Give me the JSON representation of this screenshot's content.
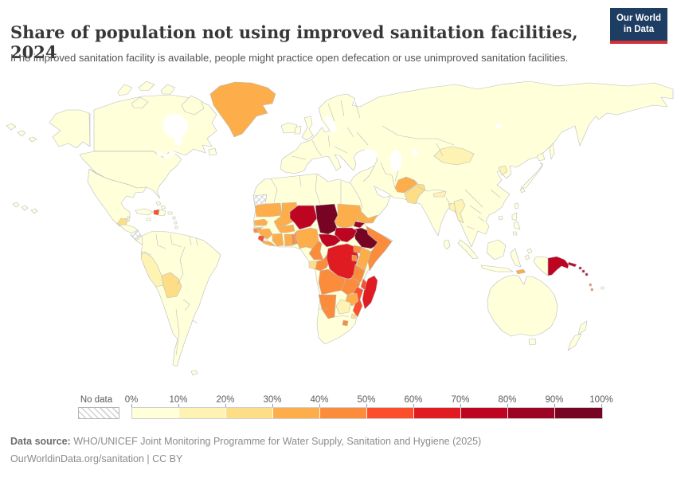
{
  "header": {
    "title": "Share of population not using improved sanitation facilities, 2024",
    "subtitle": "If no improved sanitation facility is available, people might practice open defecation or use unimproved sanitation facilities.",
    "logo": {
      "line1": "Our World",
      "line2": "in Data"
    }
  },
  "legend": {
    "no_data_label": "No data",
    "ticks": [
      "0%",
      "10%",
      "20%",
      "30%",
      "40%",
      "50%",
      "60%",
      "70%",
      "80%",
      "90%",
      "100%"
    ],
    "bins": [
      {
        "range": "0-10%",
        "color": "#FFFFD9"
      },
      {
        "range": "10-20%",
        "color": "#FEF3B3"
      },
      {
        "range": "20-30%",
        "color": "#FEDD87"
      },
      {
        "range": "30-40%",
        "color": "#FDAE4B"
      },
      {
        "range": "40-50%",
        "color": "#FB8C3C"
      },
      {
        "range": "50-60%",
        "color": "#FC4E2A"
      },
      {
        "range": "60-70%",
        "color": "#E11B22"
      },
      {
        "range": "70-80%",
        "color": "#BD0522"
      },
      {
        "range": "80-90%",
        "color": "#9D0423"
      },
      {
        "range": "90-100%",
        "color": "#780423"
      }
    ]
  },
  "footer": {
    "datasource_label": "Data source:",
    "datasource_text": " WHO/UNICEF Joint Monitoring Programme for Water Supply, Sanitation and Hygiene (2025)",
    "license_line": "OurWorldinData.org/sanitation | CC BY"
  },
  "chart_data": {
    "type": "choropleth_map",
    "title": "Share of population not using improved sanitation facilities, 2024",
    "unit": "%",
    "year": "2024",
    "legend_position": "bottom",
    "color_scale_bins": [
      {
        "range": "0-10%",
        "color": "#FFFFD9"
      },
      {
        "range": "10-20%",
        "color": "#FEF3B3"
      },
      {
        "range": "20-30%",
        "color": "#FEDD87"
      },
      {
        "range": "30-40%",
        "color": "#FDAE4B"
      },
      {
        "range": "40-50%",
        "color": "#FB8C3C"
      },
      {
        "range": "50-60%",
        "color": "#FC4E2A"
      },
      {
        "range": "60-70%",
        "color": "#E11B22"
      },
      {
        "range": "70-80%",
        "color": "#BD0522"
      },
      {
        "range": "80-90%",
        "color": "#9D0423"
      },
      {
        "range": "90-100%",
        "color": "#780423"
      }
    ],
    "no_data_regions": [
      "Western Sahara",
      "Nicaragua"
    ],
    "regions": [
      {
        "name": "Canada",
        "bin": "0-10%"
      },
      {
        "name": "United States",
        "bin": "0-10%"
      },
      {
        "name": "Mexico",
        "bin": "0-10%"
      },
      {
        "name": "Greenland",
        "bin": "30-40%"
      },
      {
        "name": "Guatemala",
        "bin": "20-30%"
      },
      {
        "name": "Belize",
        "bin": "10-20%"
      },
      {
        "name": "Honduras",
        "bin": "0-10%"
      },
      {
        "name": "Cuba",
        "bin": "0-10%"
      },
      {
        "name": "Haiti",
        "bin": "50-60%"
      },
      {
        "name": "Dominican Republic",
        "bin": "0-10%"
      },
      {
        "name": "Colombia",
        "bin": "0-10%"
      },
      {
        "name": "Venezuela",
        "bin": "0-10%"
      },
      {
        "name": "Brazil",
        "bin": "0-10%"
      },
      {
        "name": "Peru",
        "bin": "10-20%"
      },
      {
        "name": "Bolivia",
        "bin": "20-30%"
      },
      {
        "name": "Argentina",
        "bin": "0-10%"
      },
      {
        "name": "Chile",
        "bin": "0-10%"
      },
      {
        "name": "Europe (all countries)",
        "bin": "0-10%"
      },
      {
        "name": "Russia",
        "bin": "0-10%"
      },
      {
        "name": "Kazakhstan",
        "bin": "0-10%"
      },
      {
        "name": "Mongolia",
        "bin": "10-20%"
      },
      {
        "name": "China",
        "bin": "0-10%"
      },
      {
        "name": "North Korea",
        "bin": "10-20%"
      },
      {
        "name": "Japan",
        "bin": "0-10%"
      },
      {
        "name": "Afghanistan",
        "bin": "30-40%"
      },
      {
        "name": "Pakistan",
        "bin": "20-30%"
      },
      {
        "name": "India",
        "bin": "0-10%"
      },
      {
        "name": "Nepal",
        "bin": "10-20%"
      },
      {
        "name": "Bangladesh",
        "bin": "10-20%"
      },
      {
        "name": "Myanmar",
        "bin": "10-20%"
      },
      {
        "name": "Thailand",
        "bin": "0-10%"
      },
      {
        "name": "Indonesia",
        "bin": "0-10%"
      },
      {
        "name": "Philippines",
        "bin": "0-10%"
      },
      {
        "name": "Saudi Arabia",
        "bin": "0-10%"
      },
      {
        "name": "Yemen",
        "bin": "30-40%"
      },
      {
        "name": "Iran",
        "bin": "0-10%"
      },
      {
        "name": "Turkey",
        "bin": "0-10%"
      },
      {
        "name": "Morocco",
        "bin": "0-10%"
      },
      {
        "name": "Algeria",
        "bin": "0-10%"
      },
      {
        "name": "Libya",
        "bin": "0-10%"
      },
      {
        "name": "Egypt",
        "bin": "0-10%"
      },
      {
        "name": "Mauritania",
        "bin": "30-40%"
      },
      {
        "name": "Mali",
        "bin": "30-40%"
      },
      {
        "name": "Senegal",
        "bin": "30-40%"
      },
      {
        "name": "Gambia",
        "bin": "10-20%"
      },
      {
        "name": "Guinea-Bissau",
        "bin": "40-50%"
      },
      {
        "name": "Guinea",
        "bin": "30-40%"
      },
      {
        "name": "Sierra Leone",
        "bin": "50-60%"
      },
      {
        "name": "Liberia",
        "bin": "30-40%"
      },
      {
        "name": "Cote d'Ivoire",
        "bin": "30-40%"
      },
      {
        "name": "Ghana",
        "bin": "30-40%"
      },
      {
        "name": "Togo",
        "bin": "40-50%"
      },
      {
        "name": "Benin",
        "bin": "40-50%"
      },
      {
        "name": "Burkina Faso",
        "bin": "30-40%"
      },
      {
        "name": "Niger",
        "bin": "70-80%"
      },
      {
        "name": "Nigeria",
        "bin": "30-40%"
      },
      {
        "name": "Chad",
        "bin": "90-100%"
      },
      {
        "name": "Sudan",
        "bin": "30-40%"
      },
      {
        "name": "Eritrea",
        "bin": "80-90%"
      },
      {
        "name": "Djibouti",
        "bin": "30-40%"
      },
      {
        "name": "Ethiopia",
        "bin": "90-100%"
      },
      {
        "name": "Somalia",
        "bin": "40-50%"
      },
      {
        "name": "South Sudan",
        "bin": "70-80%"
      },
      {
        "name": "Central African Republic",
        "bin": "70-80%"
      },
      {
        "name": "Cameroon",
        "bin": "40-50%"
      },
      {
        "name": "Gabon",
        "bin": "20-30%"
      },
      {
        "name": "Congo",
        "bin": "40-50%"
      },
      {
        "name": "Democratic Republic of Congo",
        "bin": "60-70%"
      },
      {
        "name": "Uganda",
        "bin": "40-50%"
      },
      {
        "name": "Kenya",
        "bin": "30-40%"
      },
      {
        "name": "Rwanda/Burundi",
        "bin": "40-50%"
      },
      {
        "name": "Tanzania",
        "bin": "40-50%"
      },
      {
        "name": "Angola",
        "bin": "40-50%"
      },
      {
        "name": "Zambia",
        "bin": "40-50%"
      },
      {
        "name": "Malawi",
        "bin": "50-60%"
      },
      {
        "name": "Mozambique",
        "bin": "50-60%"
      },
      {
        "name": "Zimbabwe",
        "bin": "30-40%"
      },
      {
        "name": "Botswana",
        "bin": "10-20%"
      },
      {
        "name": "Namibia",
        "bin": "40-50%"
      },
      {
        "name": "South Africa",
        "bin": "0-10%"
      },
      {
        "name": "Lesotho",
        "bin": "40-50%"
      },
      {
        "name": "Eswatini",
        "bin": "20-30%"
      },
      {
        "name": "Madagascar",
        "bin": "60-70%"
      },
      {
        "name": "Timor-Leste",
        "bin": "30-40%"
      },
      {
        "name": "Papua New Guinea",
        "bin": "70-80%"
      },
      {
        "name": "Solomon Islands",
        "bin": "70-80%"
      },
      {
        "name": "Vanuatu",
        "bin": "40-50%"
      },
      {
        "name": "Australia",
        "bin": "0-10%"
      },
      {
        "name": "New Zealand",
        "bin": "0-10%"
      }
    ]
  },
  "map": {
    "border_color": "#b9bdc2",
    "fills": {
      "alaska": "#FFFFD9",
      "canada": "#FFFFD9",
      "usa": "#FFFFD9",
      "arctic1": "#FFFFD9",
      "arctic2": "#FFFFD9",
      "arctic3": "#FFFFD9",
      "arctic4": "#FFFFD9",
      "arctic5": "#FFFFD9",
      "newfoundland": "#FFFFD9",
      "greenland": "#FDAE4B",
      "iceland": "#FFFFD9",
      "mexico": "#FFFFD9",
      "guatemala": "#FEDD87",
      "belize": "#FEF3B3",
      "honduras": "#FFFFD9",
      "nicaragua": "no-data",
      "costa-rica-panama": "#FFFFD9",
      "cuba": "#FFFFD9",
      "jamaica": "#FFFFD9",
      "haiti": "#FC4E2A",
      "dominican-republic": "#FFFFD9",
      "puerto-rico": "#FFFFD9",
      "bahamas": "#FFFFD9",
      "antilles": "#FFFFD9",
      "falklands": "#FFFFD9",
      "hawaii": "#FFFFD9",
      "aleutians": "#FFFFD9",
      "south-america": "#FFFFD9",
      "peru": "#FEF3B3",
      "bolivia": "#FEDD87",
      "eurasia": "#FFFFD9",
      "uk": "#FFFFD9",
      "ireland": "#FFFFD9",
      "sakhalin": "#FFFFD9",
      "mongolia": "#FEF3B3",
      "north-korea": "#FEF3B3",
      "japan-hokkaido": "#FFFFD9",
      "japan-honshu": "#FFFFD9",
      "japan-kyushu": "#FFFFD9",
      "taiwan": "#FFFFD9",
      "hainan": "#FFFFD9",
      "afghanistan": "#FDAE4B",
      "pakistan": "#FEDD87",
      "nepal": "#FEF3B3",
      "bangladesh": "#FEF3B3",
      "myanmar": "#FEF3B3",
      "sri-lanka": "#FFFFD9",
      "yemen": "#FDAE4B",
      "philippines1": "#FFFFD9",
      "philippines2": "#FFFFD9",
      "sumatra": "#FFFFD9",
      "java": "#FFFFD9",
      "borneo": "#FFFFD9",
      "sulawesi": "#FFFFD9",
      "moluccas": "#FFFFD9",
      "papua-indonesia": "#FFFFD9",
      "timor-leste": "#FDAE4B",
      "papua-new-guinea": "#BD0522",
      "new-britain": "#BD0522",
      "solomon-islands": "#BD0522",
      "vanuatu": "#FB8C3C",
      "fiji": "#FFFFD9",
      "australia": "#FFFFD9",
      "tasmania": "#FFFFD9",
      "nz-north": "#FFFFD9",
      "nz-south": "#FFFFD9",
      "africa": "#FFFFD9",
      "western-sahara": "no-data",
      "mauritania": "#FDAE4B",
      "mali": "#FDAE4B",
      "senegal": "#FDAE4B",
      "gambia": "#FEF3B3",
      "guinea-bissau": "#FB8C3C",
      "guinea": "#FDAE4B",
      "sierra-leone": "#FC4E2A",
      "liberia": "#FDAE4B",
      "cote-divoire": "#FDAE4B",
      "ghana": "#FDAE4B",
      "togo": "#FB8C3C",
      "benin": "#FB8C3C",
      "burkina-faso": "#FDAE4B",
      "niger": "#BD0522",
      "nigeria": "#FDAE4B",
      "chad": "#780423",
      "sudan": "#FDAE4B",
      "eritrea": "#9D0423",
      "djibouti": "#FDAE4B",
      "ethiopia": "#780423",
      "somalia": "#FB8C3C",
      "south-sudan": "#BD0522",
      "central-african-republic": "#BD0522",
      "cameroon": "#FB8C3C",
      "gabon": "#FEDD87",
      "congo": "#FB8C3C",
      "drc": "#E11B22",
      "uganda": "#FB8C3C",
      "kenya": "#FDAE4B",
      "rwanda-burundi": "#FB8C3C",
      "tanzania": "#FB8C3C",
      "angola": "#FB8C3C",
      "zambia": "#FB8C3C",
      "malawi": "#FC4E2A",
      "mozambique": "#FC4E2A",
      "zimbabwe": "#FDAE4B",
      "botswana": "#FEF3B3",
      "namibia": "#FB8C3C",
      "lesotho": "#FB8C3C",
      "eswatini": "#FEDD87",
      "madagascar": "#E11B22"
    }
  }
}
